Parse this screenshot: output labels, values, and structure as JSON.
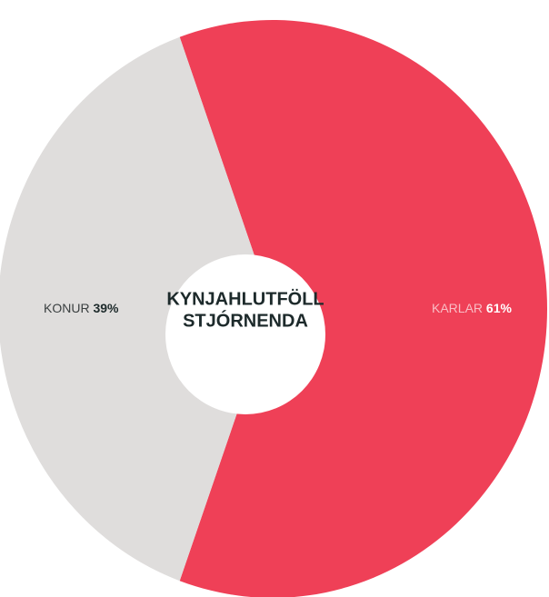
{
  "chart_data": {
    "type": "donut",
    "title": [
      "KYNJAHLUTFÖLL",
      "STJÓRNENDA"
    ],
    "categories": [
      "KARLAR",
      "KONUR"
    ],
    "values": [
      61,
      39
    ],
    "value_labels": [
      "61%",
      "39%"
    ],
    "colors": [
      "#ef4057",
      "#dfdddc"
    ]
  }
}
